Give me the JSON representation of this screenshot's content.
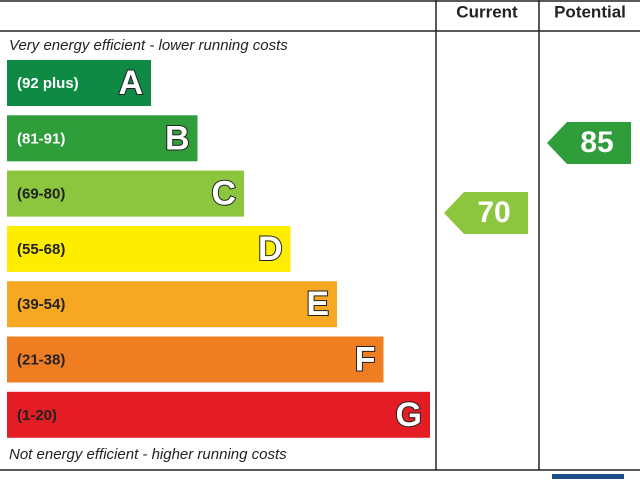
{
  "header": {
    "current": "Current",
    "potential": "Potential"
  },
  "top_note": "Very energy efficient - lower running costs",
  "bottom_note": "Not energy efficient - higher running costs",
  "bands": [
    {
      "range": "(92 plus)",
      "letter": "A"
    },
    {
      "range": "(81-91)",
      "letter": "B"
    },
    {
      "range": "(69-80)",
      "letter": "C"
    },
    {
      "range": "(55-68)",
      "letter": "D"
    },
    {
      "range": "(39-54)",
      "letter": "E"
    },
    {
      "range": "(21-38)",
      "letter": "F"
    },
    {
      "range": "(1-20)",
      "letter": "G"
    }
  ],
  "current": 70,
  "potential": 85
}
